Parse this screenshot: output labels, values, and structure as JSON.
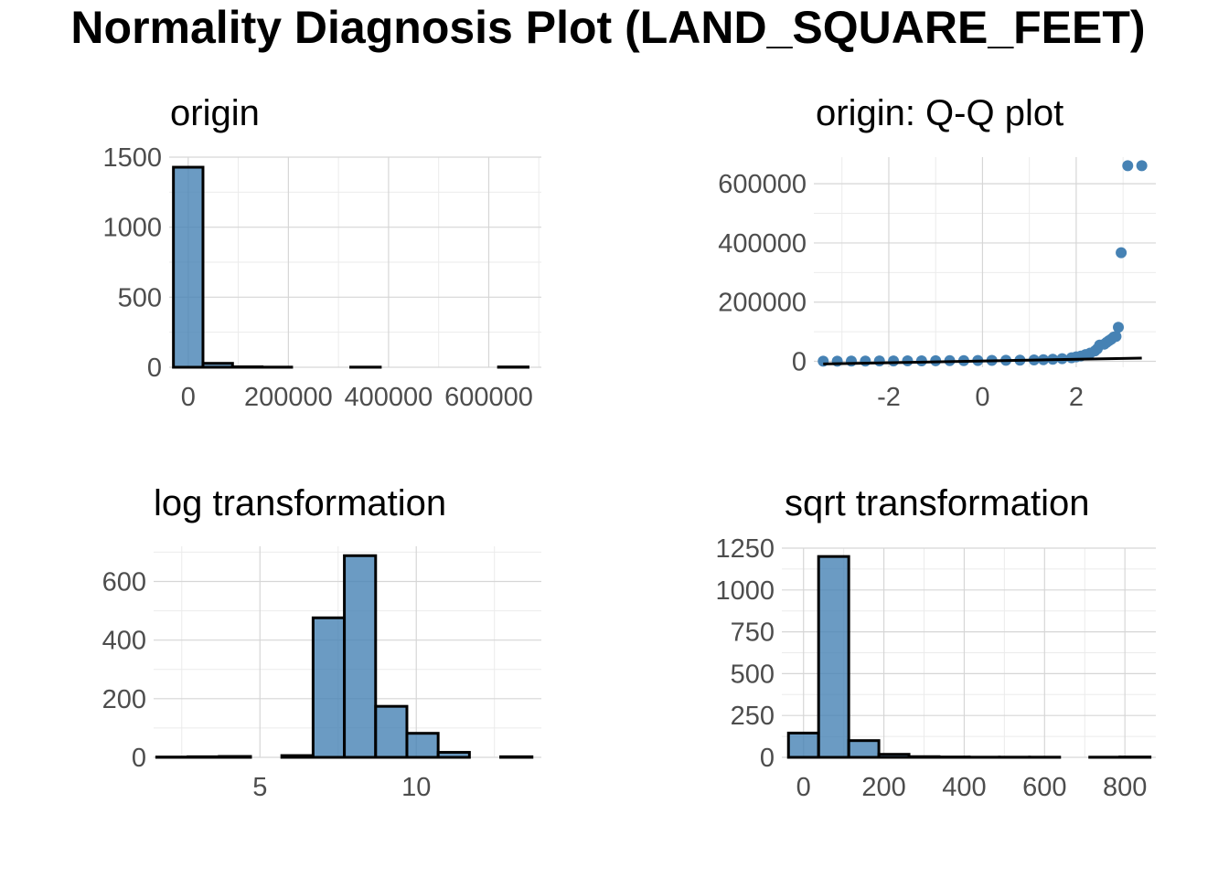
{
  "title": "Normality Diagnosis Plot (LAND_SQUARE_FEET)",
  "colors": {
    "fill": "#4682b4",
    "outline": "#000000",
    "grid": "#d6d6d6",
    "tick_text": "#4d4d4d"
  },
  "chart_data": [
    {
      "id": "origin",
      "type": "bar",
      "title": "origin",
      "xlabel": "",
      "ylabel": "",
      "xlim": [
        -38000,
        705000
      ],
      "ylim": [
        0,
        1500
      ],
      "x_ticks": [
        0,
        200000,
        400000,
        600000
      ],
      "x_tick_labels": [
        "0",
        "200000",
        "400000",
        "600000"
      ],
      "y_ticks": [
        0,
        500,
        1000,
        1500
      ],
      "y_tick_labels": [
        "0",
        "500",
        "1000",
        "1500"
      ],
      "binwidth": 59000,
      "bin_centers": [
        0,
        59000,
        118000,
        177000,
        236000,
        295000,
        354000,
        413000,
        472000,
        531000,
        590000,
        649000
      ],
      "counts": [
        1428,
        28,
        3,
        1,
        0,
        0,
        1,
        0,
        0,
        0,
        0,
        2
      ],
      "grid": true
    },
    {
      "id": "qq",
      "type": "scatter",
      "title": "origin: Q-Q plot",
      "xlabel": "",
      "ylabel": "",
      "xlim": [
        -3.6,
        3.7
      ],
      "ylim": [
        -20000,
        690000
      ],
      "x_ticks": [
        -2,
        0,
        2
      ],
      "x_tick_labels": [
        "-2",
        "0",
        "2"
      ],
      "y_ticks": [
        0,
        200000,
        400000,
        600000
      ],
      "y_tick_labels": [
        "0",
        "200000",
        "400000",
        "600000"
      ],
      "reference_line": {
        "x": [
          -3.4,
          3.4
        ],
        "y": [
          -9000,
          11000
        ]
      },
      "points": [
        [
          -3.4,
          500
        ],
        [
          -3.1,
          400
        ],
        [
          -2.8,
          700
        ],
        [
          -2.5,
          900
        ],
        [
          -2.2,
          1100
        ],
        [
          -1.9,
          1300
        ],
        [
          -1.6,
          1500
        ],
        [
          -1.3,
          1700
        ],
        [
          -1.0,
          2000
        ],
        [
          -0.7,
          2200
        ],
        [
          -0.4,
          2500
        ],
        [
          -0.1,
          2800
        ],
        [
          0.2,
          3100
        ],
        [
          0.5,
          3500
        ],
        [
          0.8,
          4000
        ],
        [
          1.1,
          4800
        ],
        [
          1.3,
          5600
        ],
        [
          1.5,
          7000
        ],
        [
          1.7,
          9000
        ],
        [
          1.9,
          12000
        ],
        [
          2.0,
          15000
        ],
        [
          2.1,
          18000
        ],
        [
          2.2,
          23000
        ],
        [
          2.3,
          28000
        ],
        [
          2.4,
          35000
        ],
        [
          2.45,
          42000
        ],
        [
          2.5,
          55000
        ],
        [
          2.6,
          58000
        ],
        [
          2.65,
          64000
        ],
        [
          2.7,
          70000
        ],
        [
          2.75,
          75000
        ],
        [
          2.8,
          82000
        ],
        [
          2.85,
          84000
        ],
        [
          2.9,
          115000
        ],
        [
          2.96,
          367000
        ],
        [
          3.1,
          661000
        ],
        [
          3.4,
          661000
        ]
      ],
      "grid": true
    },
    {
      "id": "log",
      "type": "bar",
      "title": "log transformation",
      "xlabel": "",
      "ylabel": "",
      "xlim": [
        1.6,
        14.0
      ],
      "ylim": [
        0,
        720
      ],
      "x_ticks": [
        5,
        10
      ],
      "x_tick_labels": [
        "5",
        "10"
      ],
      "y_ticks": [
        0,
        200,
        400,
        600
      ],
      "y_tick_labels": [
        "0",
        "200",
        "400",
        "600"
      ],
      "binwidth": 1.0,
      "bin_centers": [
        2.2,
        3.2,
        4.2,
        5.2,
        6.2,
        7.2,
        8.2,
        9.2,
        10.2,
        11.2,
        12.2,
        13.2
      ],
      "counts": [
        1,
        2,
        3,
        0,
        6,
        476,
        688,
        174,
        82,
        17,
        0,
        2
      ],
      "grid": true
    },
    {
      "id": "sqrt",
      "type": "bar",
      "title": "sqrt transformation",
      "xlabel": "",
      "ylabel": "",
      "xlim": [
        -54,
        877
      ],
      "ylim": [
        0,
        1250
      ],
      "x_ticks": [
        0,
        200,
        400,
        600,
        800
      ],
      "x_tick_labels": [
        "0",
        "200",
        "400",
        "600",
        "800"
      ],
      "y_ticks": [
        0,
        250,
        500,
        750,
        1000,
        1250
      ],
      "y_tick_labels": [
        "0",
        "250",
        "500",
        "750",
        "1000",
        "1250"
      ],
      "binwidth": 75,
      "bin_centers": [
        0,
        75,
        150,
        225,
        300,
        375,
        450,
        525,
        600,
        675,
        750,
        825
      ],
      "counts": [
        145,
        1200,
        100,
        18,
        4,
        2,
        1,
        1,
        1,
        0,
        1,
        2
      ],
      "grid": true
    }
  ]
}
